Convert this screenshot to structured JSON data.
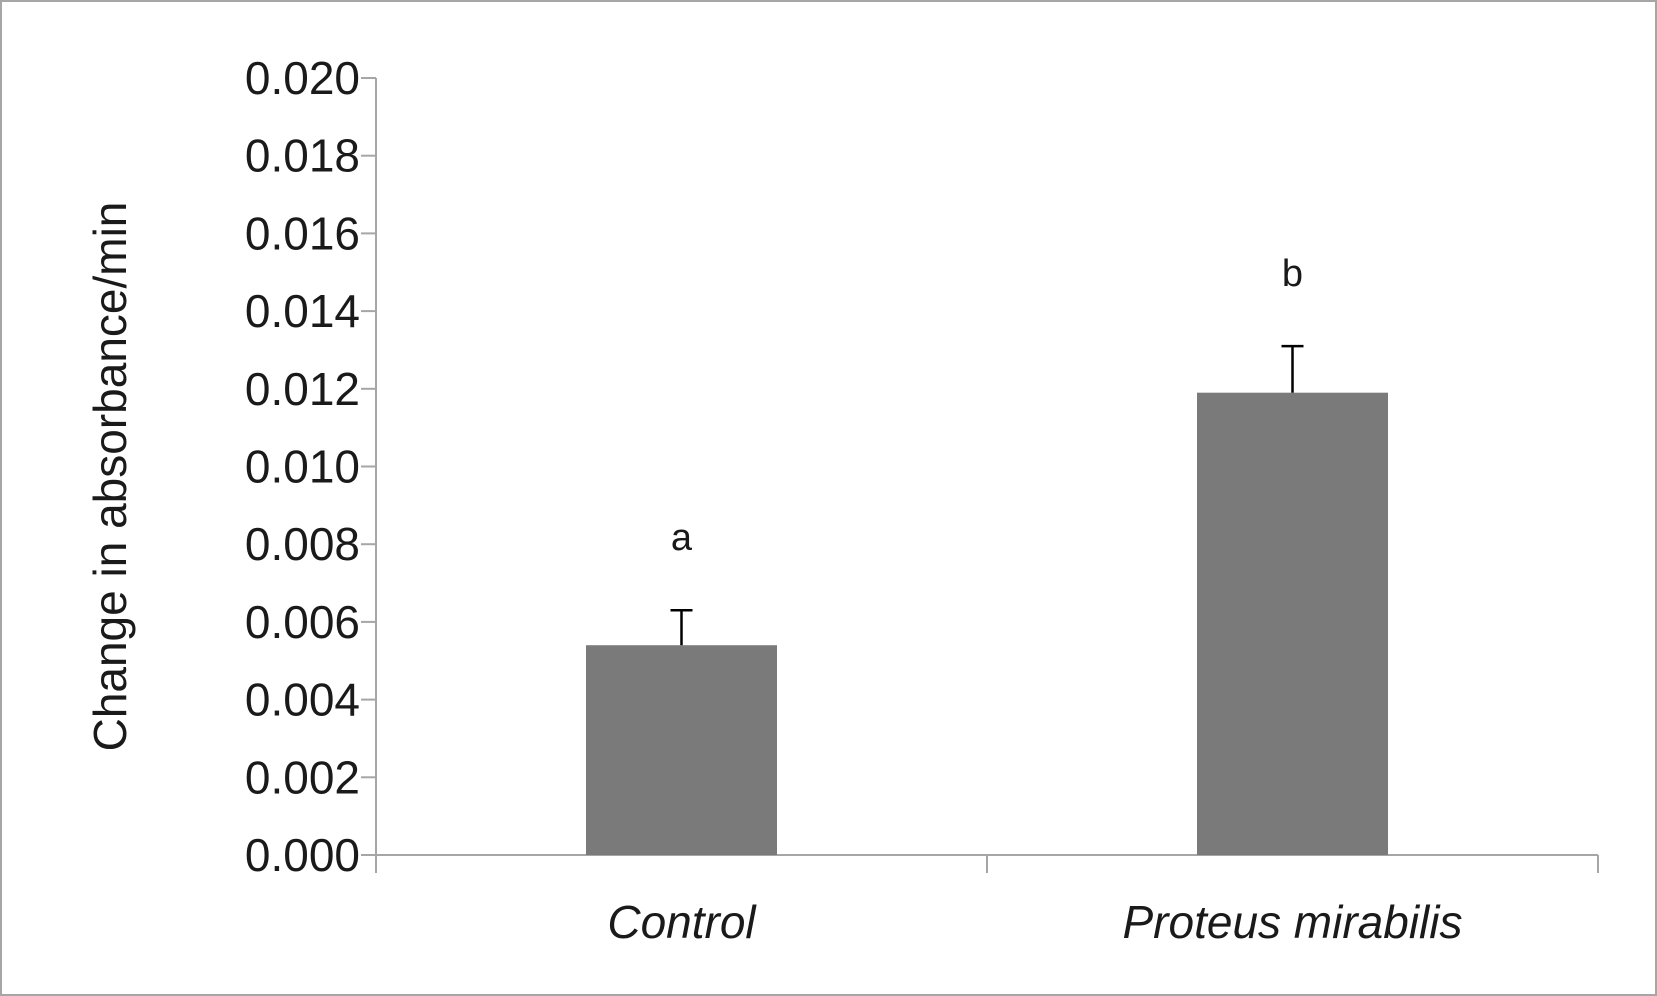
{
  "chart_data": {
    "type": "bar",
    "title": "",
    "xlabel": "",
    "ylabel": "Change in absorbance/min",
    "categories": [
      "Control",
      "Proteus mirabilis"
    ],
    "values": [
      0.0054,
      0.0119
    ],
    "errors": [
      0.0009,
      0.0012
    ],
    "significance_letters": [
      "a",
      "b"
    ],
    "ylim": [
      0,
      0.02
    ],
    "yticks": [
      "0.000",
      "0.002",
      "0.004",
      "0.006",
      "0.008",
      "0.010",
      "0.012",
      "0.014",
      "0.016",
      "0.018",
      "0.020"
    ],
    "bar_color": "#7a7a7a",
    "axis_color": "#a6a6a6",
    "grid": false,
    "legend": "none"
  }
}
